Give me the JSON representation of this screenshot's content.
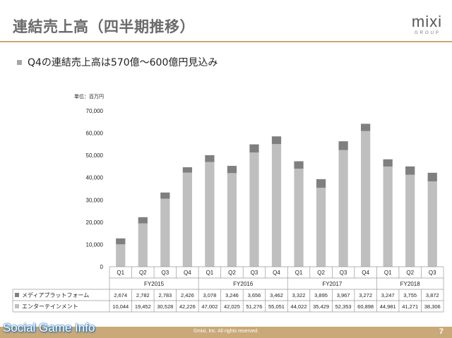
{
  "header": {
    "title": "連結売上高（四半期推移）",
    "logo_text": "mixi",
    "logo_sub": "GROUP"
  },
  "bullet": "Q4の連結売上高は570億〜600億円見込み",
  "footer": {
    "copyright": "©mixi, Inc. All rights reserved.",
    "page_number": "7",
    "watermark": "Social Game Info"
  },
  "colors": {
    "media_platform": "#7f7f7f",
    "entertainment": "#bfbfbf",
    "gold": "#c9a978"
  },
  "chart_data": {
    "type": "bar",
    "stacked": true,
    "unit_label": "単位：百万円",
    "categories": [
      "Q1",
      "Q2",
      "Q3",
      "Q4",
      "Q1",
      "Q2",
      "Q3",
      "Q4",
      "Q1",
      "Q2",
      "Q3",
      "Q4",
      "Q1",
      "Q2",
      "Q3"
    ],
    "fiscal_years": [
      {
        "label": "FY2015",
        "count": 4
      },
      {
        "label": "FY2016",
        "count": 4
      },
      {
        "label": "FY2017",
        "count": 4
      },
      {
        "label": "FY2018",
        "count": 3
      }
    ],
    "series": [
      {
        "name": "エンターテインメント",
        "values": [
          10044,
          19452,
          30528,
          42226,
          47002,
          42025,
          51276,
          55051,
          44022,
          35429,
          52353,
          60898,
          44981,
          41271,
          38306
        ]
      },
      {
        "name": "メディアプラットフォーム",
        "values": [
          2674,
          2782,
          2783,
          2426,
          3078,
          3246,
          3656,
          3462,
          3322,
          3895,
          3967,
          3272,
          3247,
          3755,
          3872
        ]
      }
    ],
    "table_rows": [
      {
        "label": "メディアプラットフォーム",
        "values": [
          "2,674",
          "2,782",
          "2,783",
          "2,426",
          "3,078",
          "3,246",
          "3,656",
          "3,462",
          "3,322",
          "3,895",
          "3,967",
          "3,272",
          "3,247",
          "3,755",
          "3,872"
        ]
      },
      {
        "label": "エンターテインメント",
        "values": [
          "10,044",
          "19,452",
          "30,528",
          "42,226",
          "47,002",
          "42,025",
          "51,276",
          "55,051",
          "44,022",
          "35,429",
          "52,353",
          "60,898",
          "44,981",
          "41,271",
          "38,306"
        ]
      }
    ],
    "ylim": [
      0,
      70000
    ],
    "yticks": [
      "0",
      "10,000",
      "20,000",
      "30,000",
      "40,000",
      "50,000",
      "60,000",
      "70,000"
    ],
    "grid": false
  }
}
